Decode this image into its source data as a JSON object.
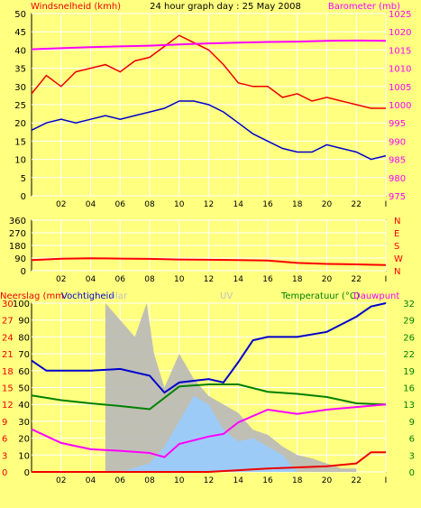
{
  "title": "24 hour graph day : 25 May 2008",
  "colors": {
    "background": "#FFFF80",
    "grid": "#FFFFFF",
    "wind_gust": "#EE0000",
    "wind_avg": "#0000CC",
    "barometer": "#FF00FF",
    "direction": "#FF0000",
    "humidity": "#0000CC",
    "temperature": "#FF00FF",
    "dewpoint": "#008000",
    "rain": "#EE0000",
    "solar": "#B8B8B8",
    "uv": "#99CCFF"
  },
  "chart_data": [
    {
      "type": "line",
      "name": "wind-barometer",
      "xlabel_ticks": [
        "02",
        "04",
        "06",
        "08",
        "10",
        "12",
        "14",
        "16",
        "18",
        "20",
        "22",
        "I"
      ],
      "left_axis": {
        "label": "Windsnelheid (kmh)",
        "ticks": [
          0,
          5,
          10,
          15,
          20,
          25,
          30,
          35,
          40,
          45,
          50
        ],
        "range": [
          0,
          50
        ]
      },
      "right_axis": {
        "label": "Barometer (mb)",
        "ticks": [
          975,
          980,
          985,
          990,
          995,
          1000,
          1005,
          1010,
          1015,
          1020,
          1025
        ],
        "range": [
          975,
          1025
        ]
      },
      "series": [
        {
          "name": "gust",
          "axis": "left",
          "x": [
            0,
            1,
            2,
            3,
            4,
            5,
            6,
            7,
            8,
            9,
            10,
            11,
            12,
            13,
            14,
            15,
            16,
            17,
            18,
            19,
            20,
            21,
            22,
            23,
            24
          ],
          "values": [
            28,
            33,
            30,
            34,
            35,
            36,
            34,
            37,
            38,
            41,
            44,
            42,
            40,
            36,
            31,
            30,
            30,
            27,
            28,
            26,
            27,
            26,
            25,
            24,
            24
          ]
        },
        {
          "name": "average",
          "axis": "left",
          "x": [
            0,
            1,
            2,
            3,
            4,
            5,
            6,
            7,
            8,
            9,
            10,
            11,
            12,
            13,
            14,
            15,
            16,
            17,
            18,
            19,
            20,
            21,
            22,
            23,
            24
          ],
          "values": [
            18,
            20,
            21,
            20,
            21,
            22,
            21,
            22,
            23,
            24,
            26,
            26,
            25,
            23,
            20,
            17,
            15,
            13,
            12,
            12,
            14,
            13,
            12,
            10,
            11
          ]
        },
        {
          "name": "barometer",
          "axis": "right",
          "x": [
            0,
            2,
            4,
            6,
            8,
            10,
            12,
            14,
            16,
            18,
            20,
            22,
            24
          ],
          "values": [
            1015.2,
            1015.5,
            1015.8,
            1016.0,
            1016.2,
            1016.5,
            1016.8,
            1017.0,
            1017.2,
            1017.3,
            1017.5,
            1017.6,
            1017.5
          ]
        }
      ]
    },
    {
      "type": "line",
      "name": "wind-direction",
      "xlabel_ticks": [
        "02",
        "04",
        "06",
        "08",
        "10",
        "12",
        "14",
        "16",
        "18",
        "20",
        "22",
        "I"
      ],
      "left_axis": {
        "ticks": [
          0,
          90,
          180,
          270,
          360
        ],
        "range": [
          0,
          360
        ]
      },
      "right_axis": {
        "ticks": [
          "N",
          "W",
          "S",
          "E",
          "N"
        ]
      },
      "series": [
        {
          "name": "direction",
          "x": [
            0,
            2,
            4,
            6,
            8,
            10,
            12,
            14,
            16,
            18,
            20,
            22,
            24
          ],
          "values": [
            75,
            85,
            88,
            86,
            84,
            80,
            78,
            75,
            72,
            55,
            48,
            45,
            40
          ]
        }
      ]
    },
    {
      "type": "line",
      "name": "rain-humidity-temperature",
      "xlabel_ticks": [
        "02",
        "04",
        "06",
        "08",
        "10",
        "12",
        "14",
        "16",
        "18",
        "20",
        "22",
        "I"
      ],
      "legend": {
        "rain": "Neerslag (mm",
        "humidity": "Vochtigheid",
        "solar": "olar",
        "uv": "UV",
        "temperature": "Temperatuur (°C)",
        "dewpoint": "Dauwpunt"
      },
      "left_axis_rain": {
        "ticks": [
          0,
          3,
          6,
          9,
          12,
          15,
          18,
          21,
          24,
          27,
          30
        ]
      },
      "left_axis_humidity": {
        "ticks": [
          0,
          10,
          20,
          30,
          40,
          50,
          60,
          70,
          80,
          90,
          100
        ]
      },
      "right_axis": {
        "ticks": [
          0,
          3,
          6,
          9,
          13,
          16,
          19,
          22,
          26,
          29,
          32
        ],
        "range": [
          0,
          32
        ]
      },
      "series": [
        {
          "name": "humidity",
          "range": [
            0,
            100
          ],
          "x": [
            0,
            1,
            2,
            4,
            6,
            8,
            9,
            10,
            12,
            13,
            14,
            15,
            16,
            18,
            20,
            22,
            23,
            24
          ],
          "values": [
            66,
            60,
            60,
            60,
            61,
            57,
            47,
            53,
            55,
            53,
            65,
            78,
            80,
            80,
            83,
            92,
            98,
            100
          ]
        },
        {
          "name": "dewpoint",
          "range": [
            0,
            32
          ],
          "x": [
            0,
            2,
            4,
            6,
            8,
            10,
            12,
            14,
            16,
            18,
            20,
            22,
            24
          ],
          "values": [
            14.5,
            13.6,
            13.0,
            12.5,
            11.9,
            16.2,
            16.6,
            16.6,
            15.2,
            14.8,
            14.2,
            13.0,
            12.8
          ]
        },
        {
          "name": "temperature",
          "range": [
            0,
            32
          ],
          "x": [
            0,
            2,
            4,
            6,
            8,
            9,
            10,
            12,
            13,
            14,
            16,
            18,
            20,
            22,
            24
          ],
          "values": [
            8.1,
            5.5,
            4.3,
            4.0,
            3.6,
            2.8,
            5.3,
            6.7,
            7.2,
            9.4,
            11.8,
            11.0,
            11.8,
            12.3,
            12.8
          ]
        },
        {
          "name": "rain",
          "range": [
            0,
            30
          ],
          "x": [
            0,
            12,
            14,
            16,
            18,
            20,
            22,
            23,
            24
          ],
          "values": [
            0,
            0,
            0.3,
            0.6,
            0.8,
            1.0,
            1.5,
            3.5,
            3.5
          ]
        },
        {
          "name": "solar",
          "range": [
            0,
            100
          ],
          "x": [
            5,
            6,
            7,
            7.8,
            8.3,
            9,
            10,
            11,
            12,
            13,
            14,
            15,
            16,
            17,
            18,
            19,
            20,
            21,
            22
          ],
          "values": [
            100,
            90,
            80,
            100,
            70,
            50,
            70,
            55,
            45,
            40,
            35,
            25,
            22,
            15,
            10,
            8,
            5,
            2,
            2
          ]
        },
        {
          "name": "uv",
          "range": [
            0,
            100
          ],
          "x": [
            6,
            8,
            9,
            10,
            11,
            12,
            13,
            14,
            15,
            16,
            17,
            18
          ],
          "values": [
            0,
            5,
            15,
            30,
            45,
            40,
            25,
            18,
            20,
            15,
            10,
            0
          ]
        }
      ]
    }
  ]
}
